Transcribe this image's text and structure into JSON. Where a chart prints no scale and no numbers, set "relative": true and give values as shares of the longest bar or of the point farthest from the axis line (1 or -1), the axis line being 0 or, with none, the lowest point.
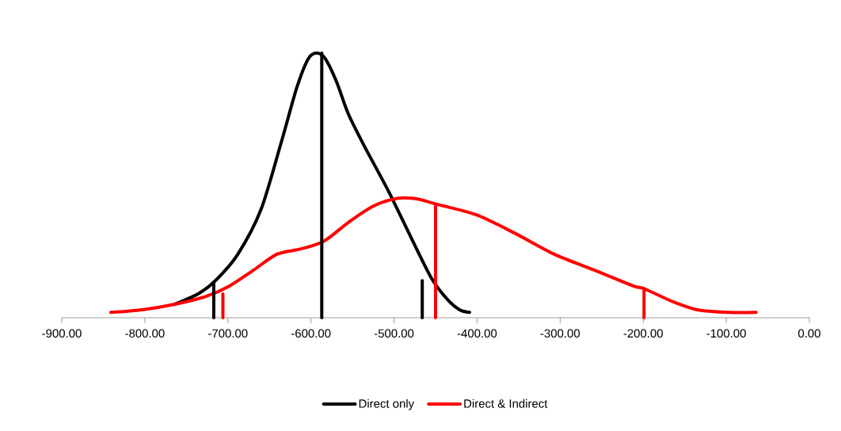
{
  "chart_data": {
    "type": "line",
    "relative": true,
    "xlim": [
      -900,
      0
    ],
    "xticks": [
      {
        "value": -900,
        "label": "-900.00"
      },
      {
        "value": -800,
        "label": "-800.00"
      },
      {
        "value": -700,
        "label": "-700.00"
      },
      {
        "value": -600,
        "label": "-600.00"
      },
      {
        "value": -500,
        "label": "-500.00"
      },
      {
        "value": -400,
        "label": "-400.00"
      },
      {
        "value": -300,
        "label": "-300.00"
      },
      {
        "value": -200,
        "label": "-200.00"
      },
      {
        "value": -100,
        "label": "-100.00"
      },
      {
        "value": 0,
        "label": "0.00"
      }
    ],
    "legend": "bottom",
    "marker": "none",
    "line_style": "solid",
    "series": [
      {
        "name": "Direct only",
        "color": "#000000",
        "x": [
          -765,
          -736,
          -715,
          -688,
          -660,
          -636,
          -617,
          -603,
          -593,
          -583,
          -569,
          -555,
          -536,
          -507,
          -479,
          -455,
          -436,
          -421,
          -409
        ],
        "values": [
          0.05,
          0.09,
          0.14,
          0.24,
          0.41,
          0.66,
          0.87,
          0.98,
          1,
          0.98,
          0.89,
          0.77,
          0.65,
          0.48,
          0.3,
          0.15,
          0.07,
          0.03,
          0.02
        ]
      },
      {
        "name": "Direct & Indirect",
        "color": "#ff0000",
        "x": [
          -841,
          -803,
          -765,
          -727,
          -698,
          -669,
          -641,
          -612,
          -584,
          -555,
          -526,
          -498,
          -474,
          -450,
          -402,
          -355,
          -307,
          -259,
          -212,
          -199,
          -164,
          -135,
          -97,
          -64
        ],
        "values": [
          0.02,
          0.03,
          0.05,
          0.08,
          0.12,
          0.18,
          0.24,
          0.26,
          0.29,
          0.36,
          0.42,
          0.45,
          0.45,
          0.43,
          0.39,
          0.32,
          0.24,
          0.18,
          0.12,
          0.11,
          0.06,
          0.03,
          0.02,
          0.02
        ]
      },
      {
        "color": "#000000",
        "x": [
          -717,
          -717
        ],
        "values": [
          0,
          0.13
        ]
      },
      {
        "color": "#000000",
        "x": [
          -587,
          -587
        ],
        "values": [
          0,
          1
        ]
      },
      {
        "color": "#000000",
        "x": [
          -466,
          -466
        ],
        "values": [
          0,
          0.14
        ]
      },
      {
        "color": "#ff0000",
        "x": [
          -706,
          -706
        ],
        "values": [
          0,
          0.09
        ]
      },
      {
        "color": "#ff0000",
        "x": [
          -450,
          -450
        ],
        "values": [
          0,
          0.43
        ]
      },
      {
        "color": "#ff0000",
        "x": [
          -199,
          -199
        ],
        "values": [
          0,
          0.11
        ]
      }
    ]
  }
}
